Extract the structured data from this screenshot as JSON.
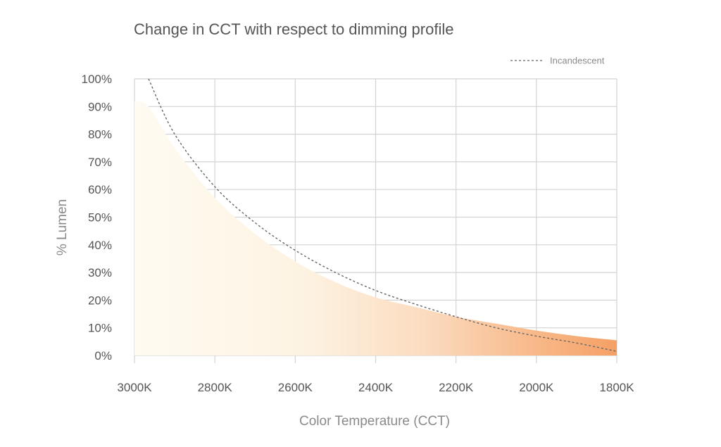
{
  "chart_data": {
    "type": "area",
    "title": "Change in CCT with respect to dimming profile",
    "xlabel": "Color Temperature (CCT)",
    "ylabel": "% Lumen",
    "x_ticks": [
      "3000K",
      "2800K",
      "2600K",
      "2400K",
      "2200K",
      "2000K",
      "1800K"
    ],
    "y_ticks": [
      "0%",
      "10%",
      "20%",
      "30%",
      "40%",
      "50%",
      "60%",
      "70%",
      "80%",
      "90%",
      "100%"
    ],
    "xlim": [
      3000,
      1800
    ],
    "ylim": [
      0,
      100
    ],
    "x_reversed": true,
    "grid": true,
    "legend_position": "top-right",
    "series": [
      {
        "name": "Incandescent",
        "style": "dashed",
        "color": "#666666",
        "x": [
          2965,
          2900,
          2800,
          2700,
          2600,
          2500,
          2400,
          2300,
          2200,
          2100,
          2000,
          1900,
          1800
        ],
        "y": [
          100,
          80,
          61,
          48,
          38,
          30,
          23.5,
          18.5,
          14,
          10,
          7,
          4.5,
          1.5
        ]
      },
      {
        "name": "",
        "style": "gradient-fill",
        "x": [
          3000,
          2965,
          2900,
          2800,
          2700,
          2600,
          2500,
          2400,
          2300,
          2200,
          2100,
          2000,
          1900,
          1800
        ],
        "y": [
          92,
          90,
          75,
          57,
          44,
          34,
          26.5,
          21,
          17.5,
          14,
          11.5,
          9,
          7,
          5.5
        ]
      }
    ],
    "colors": {
      "gradient_start": "#fffaf0",
      "gradient_mid": "#fde6cc",
      "gradient_end": "#f6a36b",
      "grid": "#d3d3d3",
      "text": "#555555"
    }
  }
}
